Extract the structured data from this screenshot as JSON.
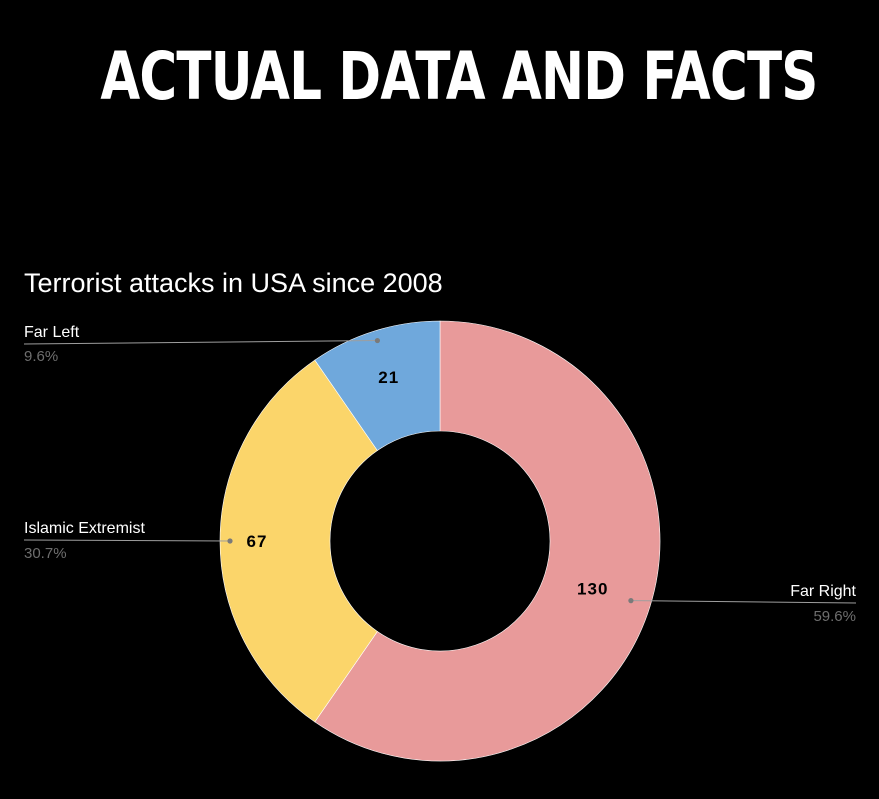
{
  "headline": "ACTUAL DATA AND FACTS",
  "chart_data": {
    "type": "pie",
    "donut": true,
    "title": "Terrorist attacks in USA since 2008",
    "slices": [
      {
        "label": "Far Right",
        "value": 130,
        "percent": "59.6%",
        "color": "#e89a9a"
      },
      {
        "label": "Islamic Extremist",
        "value": 67,
        "percent": "30.7%",
        "color": "#fbd56a"
      },
      {
        "label": "Far Left",
        "value": 21,
        "percent": "9.6%",
        "color": "#6fa8dc"
      }
    ],
    "legend": "callouts"
  }
}
